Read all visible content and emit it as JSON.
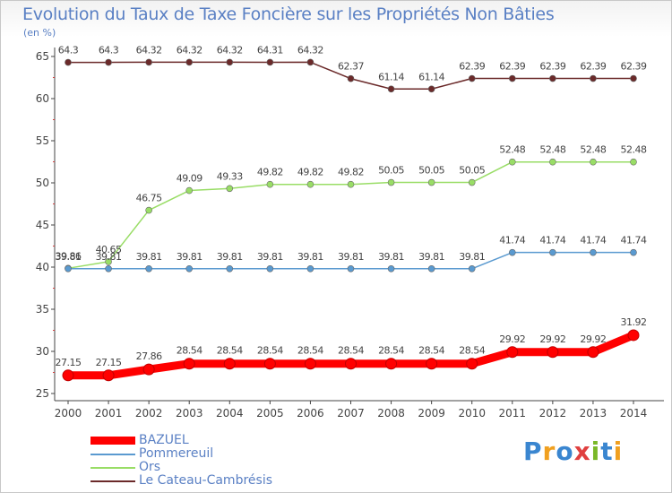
{
  "header": {
    "title": "Evolution du Taux de Taxe Foncière sur les Propriétés Non Bâties",
    "unit": "(en %)"
  },
  "logo": {
    "letters": [
      "P",
      "r",
      "o",
      "x",
      "i",
      "t",
      "i"
    ],
    "colors": [
      "#3a86d0",
      "#f0a020",
      "#3a86d0",
      "#e04040",
      "#7ab828",
      "#3a86d0",
      "#f0a020"
    ]
  },
  "chart_data": {
    "type": "line",
    "title": "Evolution du Taux de Taxe Foncière sur les Propriétés Non Bâties",
    "ylabel": "(en %)",
    "xlabel": "",
    "x": [
      "2000",
      "2001",
      "2002",
      "2003",
      "2004",
      "2005",
      "2006",
      "2007",
      "2008",
      "2009",
      "2010",
      "2011",
      "2012",
      "2013",
      "2014"
    ],
    "ylim": [
      25,
      65
    ],
    "yticks": [
      25,
      30,
      35,
      40,
      45,
      50,
      55,
      60,
      65
    ],
    "grid": false,
    "legend_position": "bottom-left",
    "series": [
      {
        "name": "BAZUEL",
        "color": "#ff0000",
        "values": [
          27.15,
          27.15,
          27.86,
          28.54,
          28.54,
          28.54,
          28.54,
          28.54,
          28.54,
          28.54,
          28.54,
          29.92,
          29.92,
          29.92,
          31.92
        ],
        "labels": [
          "27.15",
          "27.15",
          "27.86",
          "28.54",
          "28.54",
          "28.54",
          "28.54",
          "28.54",
          "28.54",
          "28.54",
          "28.54",
          "29.92",
          "29.92",
          "29.92",
          "31.92"
        ]
      },
      {
        "name": "Pommereuil",
        "color": "#5a9ad0",
        "values": [
          39.81,
          39.81,
          39.81,
          39.81,
          39.81,
          39.81,
          39.81,
          39.81,
          39.81,
          39.81,
          39.81,
          41.74,
          41.74,
          41.74,
          41.74
        ],
        "labels": [
          "39.81",
          "39.81",
          "39.81",
          "39.81",
          "39.81",
          "39.81",
          "39.81",
          "39.81",
          "39.81",
          "39.81",
          "39.81",
          "41.74",
          "41.74",
          "41.74",
          "41.74"
        ]
      },
      {
        "name": "Ors",
        "color": "#99dd66",
        "values": [
          39.86,
          40.65,
          46.75,
          49.09,
          49.33,
          49.82,
          49.82,
          49.82,
          50.05,
          50.05,
          50.05,
          52.48,
          52.48,
          52.48,
          52.48
        ],
        "labels": [
          "39.86",
          "40.65",
          "46.75",
          "49.09",
          "49.33",
          "49.82",
          "49.82",
          "49.82",
          "50.05",
          "50.05",
          "50.05",
          "52.48",
          "52.48",
          "52.48",
          "52.48"
        ]
      },
      {
        "name": "Le Cateau-Cambrésis",
        "color": "#6b2a2a",
        "values": [
          64.3,
          64.3,
          64.32,
          64.32,
          64.32,
          64.31,
          64.32,
          62.37,
          61.14,
          61.14,
          62.39,
          62.39,
          62.39,
          62.39,
          62.39
        ],
        "labels": [
          "64.3",
          "64.3",
          "64.32",
          "64.32",
          "64.32",
          "64.31",
          "64.32",
          "62.37",
          "61.14",
          "61.14",
          "62.39",
          "62.39",
          "62.39",
          "62.39",
          "62.39"
        ]
      }
    ]
  }
}
